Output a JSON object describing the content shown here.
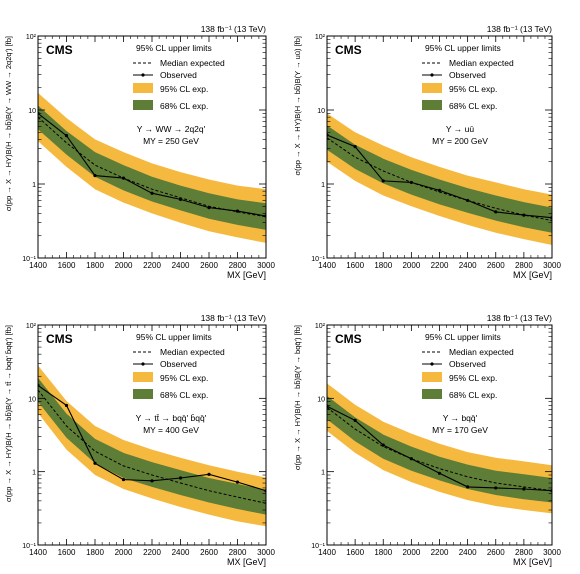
{
  "panel_texts": [
    {
      "lumi": "138 fb⁻¹ (13 TeV)",
      "cms": "CMS",
      "legend_title": "95% CL upper limits",
      "leg_median": "Median expected",
      "leg_observed": "Observed",
      "leg_95": "95% CL exp.",
      "leg_68": "68% CL exp.",
      "process": "Y → WW → 2q2q'",
      "mass": "MY = 250 GeV"
    },
    {
      "lumi": "138 fb⁻¹ (13 TeV)",
      "cms": "CMS",
      "legend_title": "95% CL upper limits",
      "leg_median": "Median expected",
      "leg_observed": "Observed",
      "leg_95": "95% CL exp.",
      "leg_68": "68% CL exp.",
      "process": "Y → uū",
      "mass": "MY = 200 GeV"
    },
    {
      "lumi": "138 fb⁻¹ (13 TeV)",
      "cms": "CMS",
      "legend_title": "95% CL upper limits",
      "leg_median": "Median expected",
      "leg_observed": "Observed",
      "leg_95": "95% CL exp.",
      "leg_68": "68% CL exp.",
      "process": "Y → tt̄ → bqq̄' b̄qq̄'",
      "mass": "MY = 400 GeV"
    },
    {
      "lumi": "138 fb⁻¹ (13 TeV)",
      "cms": "CMS",
      "legend_title": "95% CL upper limits",
      "leg_median": "Median expected",
      "leg_observed": "Observed",
      "leg_95": "95% CL exp.",
      "leg_68": "68% CL exp.",
      "process": "Y → bqq̄'",
      "mass": "MY = 170 GeV"
    }
  ],
  "colors": {
    "band95": "#F5B93F",
    "band68": "#5E7D36",
    "line": "#000000"
  },
  "chart_data": [
    {
      "type": "line",
      "xlabel": "MX [GeV]",
      "ylabel": "σ(pp → X → HY)B(H → bb̄)B(Y → WW → 2q2q') [fb]",
      "xlim": [
        1400,
        3000
      ],
      "ylim": [
        0.1,
        100
      ],
      "yscale": "log",
      "xticks": [
        1400,
        1600,
        1800,
        2000,
        2200,
        2400,
        2600,
        2800,
        3000
      ],
      "yticks": [
        0.1,
        1,
        10,
        100
      ],
      "ytick_labels": [
        "10⁻¹",
        "1",
        "10",
        "10²"
      ],
      "x": [
        1400,
        1600,
        1800,
        2000,
        2200,
        2400,
        2600,
        2800,
        3000
      ],
      "median": [
        8.0,
        3.6,
        1.8,
        1.2,
        0.85,
        0.65,
        0.5,
        0.42,
        0.36
      ],
      "band68": {
        "lo": [
          5.5,
          2.5,
          1.25,
          0.82,
          0.58,
          0.44,
          0.34,
          0.28,
          0.24
        ],
        "hi": [
          11.5,
          5.2,
          2.7,
          1.8,
          1.25,
          0.95,
          0.75,
          0.62,
          0.55
        ]
      },
      "band95": {
        "lo": [
          3.8,
          1.7,
          0.85,
          0.56,
          0.4,
          0.3,
          0.23,
          0.19,
          0.16
        ],
        "hi": [
          17.0,
          7.8,
          4.0,
          2.7,
          1.9,
          1.45,
          1.15,
          0.95,
          0.85
        ]
      },
      "observed": [
        9.0,
        4.5,
        1.3,
        1.2,
        0.75,
        0.62,
        0.48,
        0.43,
        0.37
      ]
    },
    {
      "type": "line",
      "xlabel": "MX [GeV]",
      "ylabel": "σ(pp → X → HY)B(H → bb̄)B(Y → uū) [fb]",
      "xlim": [
        1400,
        3000
      ],
      "ylim": [
        0.1,
        100
      ],
      "yscale": "log",
      "xticks": [
        1400,
        1600,
        1800,
        2000,
        2200,
        2400,
        2600,
        2800,
        3000
      ],
      "yticks": [
        0.1,
        1,
        10,
        100
      ],
      "ytick_labels": [
        "10⁻¹",
        "1",
        "10",
        "10²"
      ],
      "x": [
        1400,
        1600,
        1800,
        2000,
        2200,
        2400,
        2600,
        2800,
        3000
      ],
      "median": [
        4.2,
        2.3,
        1.5,
        1.05,
        0.78,
        0.6,
        0.47,
        0.38,
        0.32
      ],
      "band68": {
        "lo": [
          2.9,
          1.6,
          1.02,
          0.72,
          0.53,
          0.41,
          0.32,
          0.26,
          0.22
        ],
        "hi": [
          6.2,
          3.4,
          2.2,
          1.55,
          1.15,
          0.88,
          0.7,
          0.57,
          0.48
        ]
      },
      "band95": {
        "lo": [
          2.0,
          1.1,
          0.7,
          0.5,
          0.37,
          0.28,
          0.22,
          0.18,
          0.15
        ],
        "hi": [
          9.0,
          5.0,
          3.3,
          2.3,
          1.7,
          1.3,
          1.05,
          0.85,
          0.72
        ]
      },
      "observed": [
        4.6,
        3.2,
        1.1,
        1.05,
        0.82,
        0.6,
        0.42,
        0.38,
        0.35
      ]
    },
    {
      "type": "line",
      "xlabel": "MX [GeV]",
      "ylabel": "σ(pp → X → HY)B(H → bb̄)B(Y → tt̄ → bqq̄' b̄qq̄') [fb]",
      "xlim": [
        1400,
        3000
      ],
      "ylim": [
        0.1,
        100
      ],
      "yscale": "log",
      "xticks": [
        1400,
        1600,
        1800,
        2000,
        2200,
        2400,
        2600,
        2800,
        3000
      ],
      "yticks": [
        0.1,
        1,
        10,
        100
      ],
      "ytick_labels": [
        "10⁻¹",
        "1",
        "10",
        "10²"
      ],
      "x": [
        1400,
        1600,
        1800,
        2000,
        2200,
        2400,
        2600,
        2800,
        3000
      ],
      "median": [
        13.0,
        4.2,
        1.9,
        1.2,
        0.9,
        0.7,
        0.55,
        0.45,
        0.37
      ],
      "band68": {
        "lo": [
          9.0,
          2.9,
          1.3,
          0.82,
          0.62,
          0.48,
          0.38,
          0.31,
          0.26
        ],
        "hi": [
          19.0,
          6.2,
          2.8,
          1.8,
          1.35,
          1.05,
          0.82,
          0.68,
          0.56
        ]
      },
      "band95": {
        "lo": [
          6.3,
          2.0,
          0.9,
          0.58,
          0.43,
          0.33,
          0.26,
          0.21,
          0.18
        ],
        "hi": [
          28.0,
          9.2,
          4.2,
          2.7,
          2.0,
          1.55,
          1.22,
          1.0,
          0.83
        ]
      },
      "observed": [
        15.0,
        8.0,
        1.3,
        0.78,
        0.75,
        0.82,
        0.92,
        0.72,
        0.55
      ]
    },
    {
      "type": "line",
      "xlabel": "MX [GeV]",
      "ylabel": "σ(pp → X → HY)B(H → bb̄)B(Y → bqq̄') [fb]",
      "xlim": [
        1400,
        3000
      ],
      "ylim": [
        0.1,
        100
      ],
      "yscale": "log",
      "xticks": [
        1400,
        1600,
        1800,
        2000,
        2200,
        2400,
        2600,
        2800,
        3000
      ],
      "yticks": [
        0.1,
        1,
        10,
        100
      ],
      "ytick_labels": [
        "10⁻¹",
        "1",
        "10",
        "10²"
      ],
      "x": [
        1400,
        1600,
        1800,
        2000,
        2200,
        2400,
        2600,
        2800,
        3000
      ],
      "median": [
        7.5,
        3.8,
        2.2,
        1.5,
        1.1,
        0.85,
        0.7,
        0.62,
        0.55
      ],
      "band68": {
        "lo": [
          5.2,
          2.6,
          1.5,
          1.03,
          0.76,
          0.58,
          0.48,
          0.42,
          0.38
        ],
        "hi": [
          10.8,
          5.5,
          3.2,
          2.2,
          1.6,
          1.25,
          1.03,
          0.92,
          0.82
        ]
      },
      "band95": {
        "lo": [
          3.6,
          1.8,
          1.05,
          0.72,
          0.53,
          0.41,
          0.34,
          0.3,
          0.27
        ],
        "hi": [
          16.0,
          8.2,
          4.8,
          3.3,
          2.4,
          1.85,
          1.55,
          1.38,
          1.22
        ]
      },
      "observed": [
        7.8,
        5.0,
        2.3,
        1.5,
        0.95,
        0.62,
        0.6,
        0.58,
        0.55
      ]
    }
  ]
}
